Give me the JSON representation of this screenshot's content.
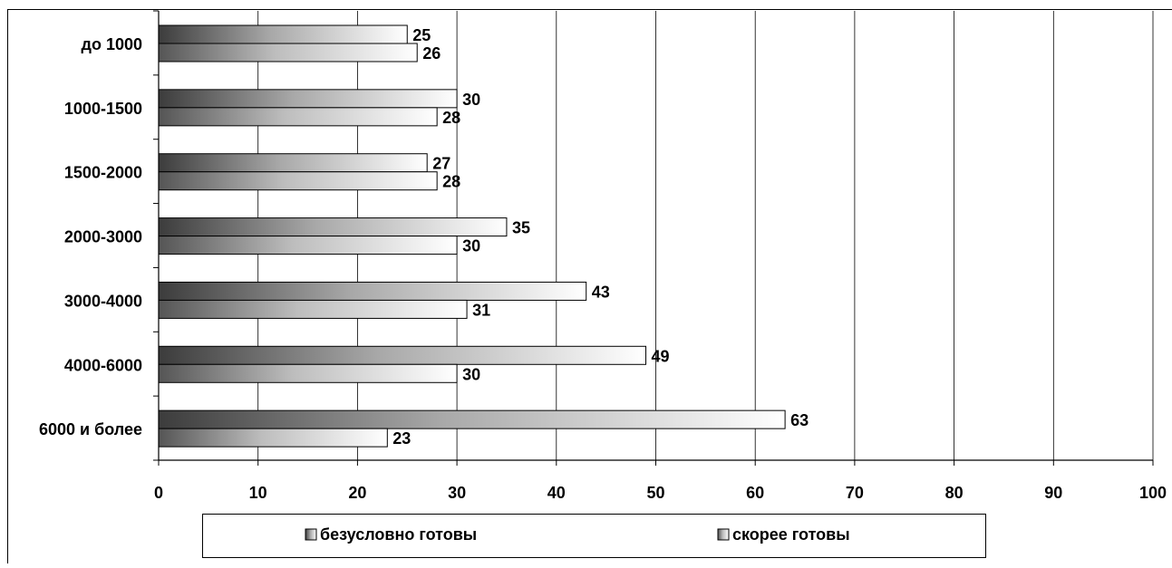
{
  "chart_data": {
    "type": "bar",
    "orientation": "horizontal",
    "categories": [
      "до 1000",
      "1000-1500",
      "1500-2000",
      "2000-3000",
      "3000-4000",
      "4000-6000",
      "6000 и более"
    ],
    "series": [
      {
        "name": "безусловно готовы",
        "values": [
          25,
          30,
          27,
          35,
          43,
          49,
          63
        ]
      },
      {
        "name": "скорее готовы",
        "values": [
          26,
          28,
          28,
          30,
          31,
          30,
          23
        ]
      }
    ],
    "xlim": [
      0,
      100
    ],
    "xticks": [
      0,
      10,
      20,
      30,
      40,
      50,
      60,
      70,
      80,
      90,
      100
    ],
    "grid": "vertical",
    "legend_position": "bottom",
    "data_labels": true
  }
}
